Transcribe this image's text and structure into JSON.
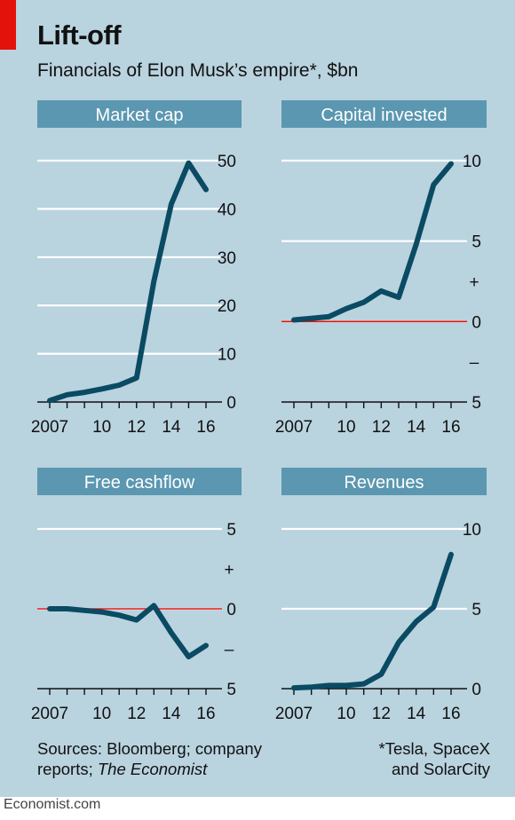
{
  "header": {
    "title": "Lift-off",
    "subtitle": "Financials of Elon Musk’s empire*, $bn"
  },
  "footer": {
    "sources_line1": "Sources: Bloomberg; company",
    "sources_line2_a": "reports; ",
    "sources_line2_b": "The Economist",
    "note_line1": "*Tesla, SpaceX",
    "note_line2": "and SolarCity",
    "brand": "Economist.com"
  },
  "colors": {
    "background": "#b9d3df",
    "header_bar": "#5b97b0",
    "line": "#0a4a63",
    "zero_line": "#e3120b",
    "grid": "#ffffff",
    "accent": "#e3120b"
  },
  "chart_data": [
    {
      "type": "line",
      "title": "Market cap",
      "x": [
        2007,
        2008,
        2009,
        2010,
        2011,
        2012,
        2013,
        2014,
        2015,
        2016
      ],
      "series": [
        {
          "values": [
            0.3,
            1.5,
            2.0,
            2.7,
            3.5,
            5.0,
            25.0,
            41.0,
            49.5,
            44.0
          ]
        }
      ],
      "ylim": [
        0,
        50
      ],
      "yticks": [
        0,
        10,
        20,
        30,
        40,
        50
      ],
      "ytick_labels": [
        "0",
        "10",
        "20",
        "30",
        "40",
        "50"
      ],
      "xtick_labels": [
        "2007",
        "10",
        "12",
        "14",
        "16"
      ],
      "xtick_values": [
        2007,
        2010,
        2012,
        2014,
        2016
      ],
      "grid": true
    },
    {
      "type": "line",
      "title": "Capital invested",
      "x": [
        2007,
        2008,
        2009,
        2010,
        2011,
        2012,
        2013,
        2014,
        2015,
        2016
      ],
      "series": [
        {
          "values": [
            0.1,
            0.2,
            0.3,
            0.8,
            1.2,
            1.9,
            1.5,
            4.8,
            8.5,
            9.8
          ]
        }
      ],
      "ylim": [
        -5,
        10
      ],
      "yticks": [
        -5,
        0,
        5,
        10
      ],
      "ytick_labels": [
        "5",
        "0",
        "5",
        "10"
      ],
      "sign_labels": [
        {
          "value": 2.5,
          "text": "+"
        },
        {
          "value": -2.5,
          "text": "–"
        }
      ],
      "zero_line": true,
      "xtick_labels": [
        "2007",
        "10",
        "12",
        "14",
        "16"
      ],
      "xtick_values": [
        2007,
        2010,
        2012,
        2014,
        2016
      ],
      "grid": true
    },
    {
      "type": "line",
      "title": "Free cashflow",
      "x": [
        2007,
        2008,
        2009,
        2010,
        2011,
        2012,
        2013,
        2014,
        2015,
        2016
      ],
      "series": [
        {
          "values": [
            0,
            0,
            -0.1,
            -0.2,
            -0.4,
            -0.7,
            0.2,
            -1.5,
            -3.0,
            -2.3
          ]
        }
      ],
      "ylim": [
        -5,
        5
      ],
      "yticks": [
        -5,
        0,
        5
      ],
      "ytick_labels": [
        "5",
        "0",
        "5"
      ],
      "sign_labels": [
        {
          "value": 2.5,
          "text": "+"
        },
        {
          "value": -2.5,
          "text": "–"
        }
      ],
      "zero_line": true,
      "xtick_labels": [
        "2007",
        "10",
        "12",
        "14",
        "16"
      ],
      "xtick_values": [
        2007,
        2010,
        2012,
        2014,
        2016
      ],
      "grid": true
    },
    {
      "type": "line",
      "title": "Revenues",
      "x": [
        2007,
        2008,
        2009,
        2010,
        2011,
        2012,
        2013,
        2014,
        2015,
        2016
      ],
      "series": [
        {
          "values": [
            0.05,
            0.1,
            0.2,
            0.2,
            0.3,
            0.9,
            2.9,
            4.2,
            5.1,
            8.4
          ]
        }
      ],
      "ylim": [
        0,
        10
      ],
      "yticks": [
        0,
        5,
        10
      ],
      "ytick_labels": [
        "0",
        "5",
        "10"
      ],
      "xtick_labels": [
        "2007",
        "10",
        "12",
        "14",
        "16"
      ],
      "xtick_values": [
        2007,
        2010,
        2012,
        2014,
        2016
      ],
      "grid": true
    }
  ]
}
